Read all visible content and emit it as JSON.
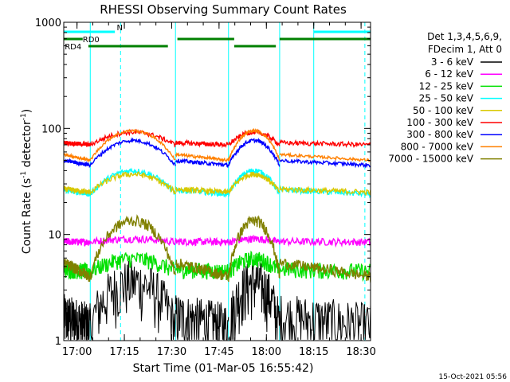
{
  "chart_data": {
    "type": "line",
    "title": "RHESSI Observing Summary Count Rates",
    "xlabel": "Start Time (01-Mar-05 16:55:42)",
    "ylabel_main": "Count Rate (s",
    "ylabel_sup1": "-1",
    "ylabel_mid": " detector",
    "ylabel_sup2": "-1",
    "ylabel_end": ")",
    "yscale": "log",
    "ylim": [
      1,
      1000
    ],
    "xlim_minutes": [
      16.93,
      18.55
    ],
    "y_ticks": [
      {
        "value": 1,
        "label": "1"
      },
      {
        "value": 10,
        "label": "10"
      },
      {
        "value": 100,
        "label": "100"
      },
      {
        "value": 1000,
        "label": "1000"
      }
    ],
    "x_ticks": [
      {
        "value": 17.0,
        "label": "17:00"
      },
      {
        "value": 17.25,
        "label": "17:15"
      },
      {
        "value": 17.5,
        "label": "17:30"
      },
      {
        "value": 17.75,
        "label": "17:45"
      },
      {
        "value": 18.0,
        "label": "18:00"
      },
      {
        "value": 18.25,
        "label": "18:15"
      },
      {
        "value": 18.5,
        "label": "18:30"
      }
    ],
    "legend_header": [
      "Det 1,3,4,5,6,9,",
      "FDecim 1, Att 0"
    ],
    "series": [
      {
        "name": "3 - 6 keV",
        "color": "#000000"
      },
      {
        "name": "6 - 12 keV",
        "color": "#ff00ff"
      },
      {
        "name": "12 - 25 keV",
        "color": "#00e000"
      },
      {
        "name": "25 - 50 keV",
        "color": "#00ffff"
      },
      {
        "name": "50 - 100 keV",
        "color": "#d8c800"
      },
      {
        "name": "100 - 300 keV",
        "color": "#ff0000"
      },
      {
        "name": "300 - 800 keV",
        "color": "#0000ff"
      },
      {
        "name": "800 - 7000 keV",
        "color": "#ff8000"
      },
      {
        "name": "7000 - 15000 keV",
        "color": "#808000"
      }
    ],
    "flags": [
      {
        "label": "N",
        "color": "#00ffff",
        "intervals": [
          [
            16.93,
            17.2
          ],
          [
            18.25,
            18.55
          ]
        ]
      },
      {
        "label": "RD0",
        "color": "#008000",
        "intervals": [
          [
            16.93,
            17.03
          ],
          [
            17.53,
            17.83
          ],
          [
            18.07,
            18.55
          ]
        ]
      },
      {
        "label": "RD4",
        "color": "#008000",
        "intervals": [
          [
            17.06,
            17.48
          ],
          [
            17.83,
            18.05
          ]
        ]
      }
    ],
    "eclipse_boundaries": [
      17.07,
      17.52,
      17.8,
      18.07
    ],
    "vertical_lines_solid": [
      17.07,
      17.52,
      17.8,
      18.07,
      18.25
    ],
    "vertical_lines_dashed": [
      17.23,
      18.52
    ],
    "grid": false,
    "legend_position": "right"
  },
  "footer": {
    "timestamp": "15-Oct-2021 05:56"
  }
}
